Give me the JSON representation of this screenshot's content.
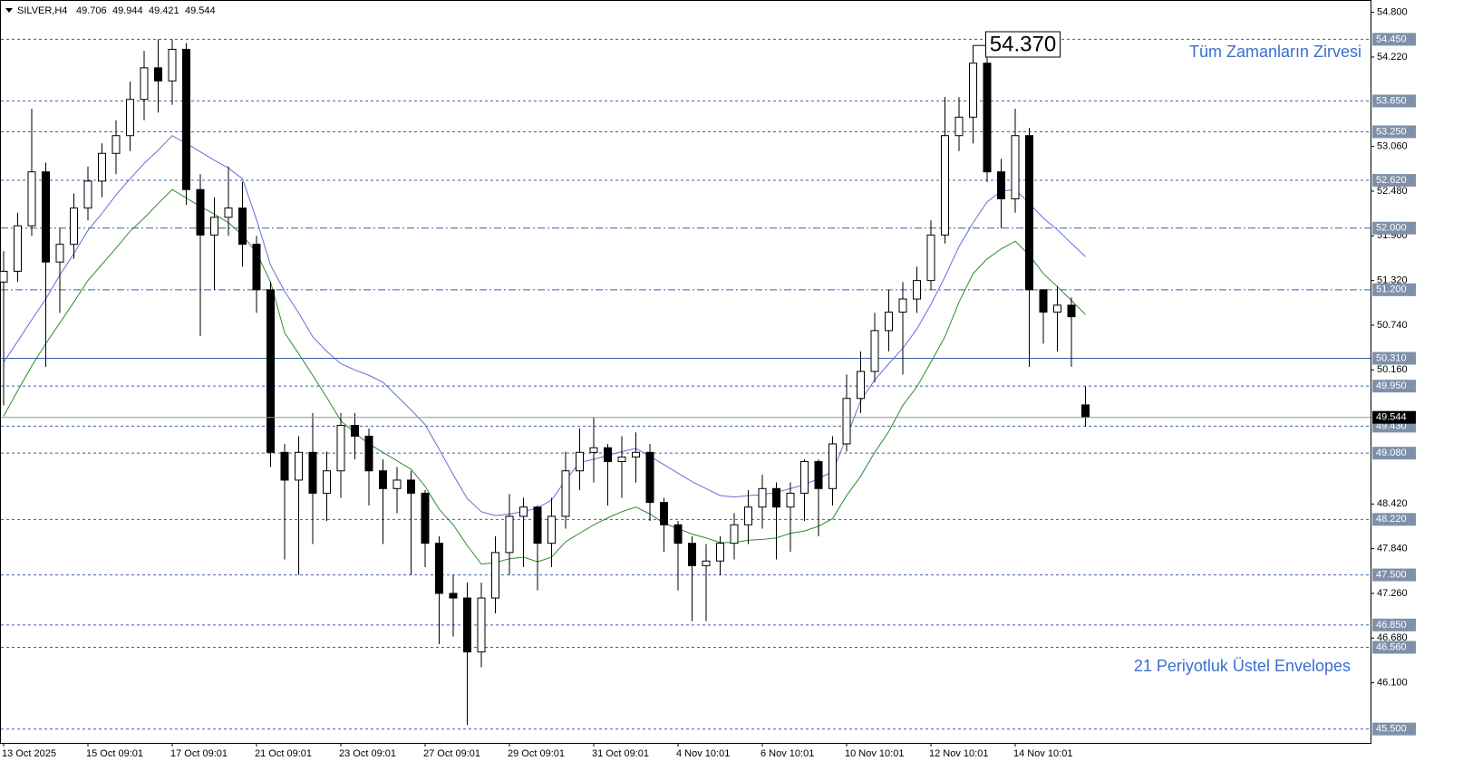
{
  "chart_data": {
    "type": "candlestick",
    "title": "SILVER,H4",
    "categories": [
      "13 Oct 2025",
      null,
      null,
      null,
      null,
      null,
      "15 Oct 09:01",
      null,
      null,
      null,
      null,
      null,
      "17 Oct 09:01",
      null,
      null,
      null,
      null,
      null,
      "21 Oct 09:01",
      null,
      null,
      null,
      null,
      null,
      "23 Oct 09:01",
      null,
      null,
      null,
      null,
      null,
      "27 Oct 09:01",
      null,
      null,
      null,
      null,
      null,
      "29 Oct 09:01",
      null,
      null,
      null,
      null,
      null,
      "31 Oct 09:01",
      null,
      null,
      null,
      null,
      null,
      "4 Nov 10:01",
      null,
      null,
      null,
      null,
      null,
      "6 Nov 10:01",
      null,
      null,
      null,
      null,
      null,
      "10 Nov 10:01",
      null,
      null,
      null,
      null,
      null,
      "12 Nov 10:01",
      null,
      null,
      null,
      null,
      null,
      "14 Nov 10:01",
      null,
      null,
      null,
      null,
      null
    ],
    "open": [
      51.3,
      51.44,
      52.03,
      52.73,
      51.56,
      51.79,
      52.26,
      52.61,
      52.97,
      53.2,
      53.67,
      54.08,
      53.91,
      54.32,
      52.5,
      51.91,
      52.14,
      52.26,
      51.79,
      51.2,
      49.09,
      48.73,
      49.09,
      48.56,
      48.85,
      49.44,
      49.3,
      48.85,
      48.62,
      48.73,
      48.56,
      47.91,
      47.26,
      47.2,
      46.5,
      47.2,
      47.79,
      48.26,
      48.38,
      47.91,
      48.26,
      48.85,
      49.09,
      49.15,
      48.97,
      49.03,
      49.09,
      48.44,
      48.15,
      47.91,
      47.62,
      47.68,
      47.91,
      48.15,
      48.38,
      48.62,
      48.38,
      48.56,
      48.97,
      48.62,
      49.2,
      49.79,
      50.14,
      50.67,
      50.91,
      51.08,
      51.32,
      51.91,
      53.2,
      53.44,
      54.14,
      52.73,
      52.38,
      53.2,
      51.2,
      50.91,
      51.0,
      49.706
    ],
    "high": [
      51.7,
      52.2,
      53.55,
      52.85,
      52.0,
      52.45,
      52.8,
      53.1,
      53.4,
      53.9,
      54.3,
      54.45,
      54.45,
      54.4,
      52.7,
      52.4,
      52.8,
      52.6,
      51.9,
      51.3,
      49.2,
      49.3,
      49.6,
      49.1,
      49.6,
      49.6,
      49.4,
      49.0,
      48.9,
      48.85,
      48.6,
      48.0,
      47.5,
      47.4,
      47.4,
      48.0,
      48.55,
      48.5,
      48.4,
      48.5,
      49.1,
      49.4,
      49.55,
      49.2,
      49.3,
      49.35,
      49.2,
      48.5,
      48.2,
      48.0,
      47.9,
      48.0,
      48.3,
      48.6,
      48.8,
      48.7,
      48.7,
      49.0,
      49.0,
      49.3,
      50.1,
      50.4,
      50.9,
      51.2,
      51.3,
      51.5,
      52.1,
      53.7,
      53.7,
      54.37,
      54.25,
      52.9,
      53.55,
      53.3,
      51.2,
      51.25,
      51.1,
      49.944
    ],
    "low": [
      49.7,
      51.3,
      51.9,
      50.2,
      50.9,
      51.6,
      52.1,
      52.4,
      52.7,
      53.0,
      53.4,
      53.5,
      53.6,
      52.3,
      50.6,
      51.2,
      51.9,
      51.5,
      50.9,
      48.9,
      47.7,
      47.5,
      47.9,
      48.2,
      48.5,
      49.0,
      48.4,
      47.9,
      48.3,
      47.5,
      47.6,
      46.6,
      46.7,
      45.55,
      46.3,
      47.0,
      47.5,
      47.6,
      47.3,
      47.6,
      48.1,
      48.6,
      48.7,
      48.4,
      48.5,
      48.7,
      48.2,
      47.8,
      47.3,
      46.9,
      46.9,
      47.5,
      47.7,
      47.9,
      48.1,
      47.7,
      47.8,
      48.2,
      48.0,
      48.4,
      49.1,
      49.6,
      50.0,
      50.4,
      50.1,
      50.9,
      51.2,
      51.8,
      53.0,
      53.1,
      52.6,
      52.0,
      52.2,
      50.2,
      50.5,
      50.4,
      50.2,
      49.421
    ],
    "close": [
      51.44,
      52.03,
      52.73,
      51.56,
      51.79,
      52.26,
      52.61,
      52.97,
      53.2,
      53.67,
      54.08,
      53.91,
      54.32,
      52.5,
      51.91,
      52.14,
      52.26,
      51.79,
      51.2,
      49.09,
      48.73,
      49.09,
      48.56,
      48.85,
      49.44,
      49.3,
      48.85,
      48.62,
      48.73,
      48.56,
      47.91,
      47.26,
      47.2,
      46.5,
      47.2,
      47.79,
      48.26,
      48.38,
      47.91,
      48.26,
      48.85,
      49.09,
      49.15,
      48.97,
      49.03,
      49.09,
      48.44,
      48.15,
      47.91,
      47.62,
      47.68,
      47.91,
      48.15,
      48.38,
      48.62,
      48.38,
      48.56,
      48.97,
      48.62,
      49.2,
      49.79,
      50.14,
      50.67,
      50.91,
      51.08,
      51.32,
      51.91,
      53.2,
      53.44,
      54.14,
      52.73,
      52.38,
      53.2,
      51.2,
      50.91,
      51.0,
      50.85,
      49.544
    ],
    "bull_color": "#ffffff",
    "bear_color": "#000000",
    "envelopes": [
      {
        "color": "#6a6ad8",
        "values": [
          50.26,
          50.53,
          50.81,
          51.08,
          51.39,
          51.67,
          51.97,
          52.19,
          52.43,
          52.64,
          52.84,
          53.01,
          53.2,
          53.1,
          52.99,
          52.88,
          52.78,
          52.64,
          52.11,
          51.52,
          51.18,
          50.9,
          50.59,
          50.4,
          50.24,
          50.16,
          50.09,
          50.0,
          49.82,
          49.64,
          49.45,
          49.13,
          48.8,
          48.49,
          48.32,
          48.27,
          48.29,
          48.32,
          48.37,
          48.47,
          48.73,
          48.96,
          49.0,
          49.05,
          49.1,
          49.14,
          49.04,
          48.93,
          48.82,
          48.71,
          48.62,
          48.53,
          48.51,
          48.53,
          48.54,
          48.57,
          48.62,
          48.67,
          48.75,
          48.84,
          49.29,
          49.76,
          50.03,
          50.24,
          50.44,
          50.69,
          51.01,
          51.37,
          51.76,
          52.07,
          52.34,
          52.48,
          52.5,
          52.32,
          52.13,
          51.98,
          51.8,
          51.63
        ]
      },
      {
        "color": "#2e8b2e",
        "values": [
          49.56,
          49.89,
          50.21,
          50.5,
          50.77,
          51.04,
          51.32,
          51.53,
          51.74,
          51.96,
          52.13,
          52.32,
          52.5,
          52.39,
          52.28,
          52.18,
          52.07,
          51.91,
          51.68,
          51.3,
          50.64,
          50.37,
          50.09,
          49.8,
          49.5,
          49.34,
          49.2,
          49.09,
          48.98,
          48.87,
          48.65,
          48.35,
          48.15,
          47.88,
          47.64,
          47.66,
          47.71,
          47.73,
          47.67,
          47.73,
          47.93,
          48.04,
          48.15,
          48.24,
          48.32,
          48.38,
          48.29,
          48.17,
          48.1,
          48.03,
          47.98,
          47.92,
          47.92,
          47.95,
          47.96,
          47.98,
          48.04,
          48.07,
          48.13,
          48.23,
          48.53,
          48.78,
          49.09,
          49.36,
          49.7,
          49.94,
          50.26,
          50.59,
          51.04,
          51.41,
          51.6,
          51.73,
          51.83,
          51.65,
          51.41,
          51.24,
          51.06,
          50.88
        ]
      }
    ],
    "levels": [
      {
        "value": 54.45,
        "label": "54.450",
        "style": "dashed"
      },
      {
        "value": 53.65,
        "label": "53.650",
        "style": "dashed"
      },
      {
        "value": 53.25,
        "label": "53.250",
        "style": "dashed"
      },
      {
        "value": 52.62,
        "label": "52.620",
        "style": "dashed"
      },
      {
        "value": 52.0,
        "label": "52.000",
        "style": "dashdot"
      },
      {
        "value": 51.2,
        "label": "51.200",
        "style": "dashdot"
      },
      {
        "value": 50.31,
        "label": "50.310",
        "style": "solid"
      },
      {
        "value": 49.95,
        "label": "49.950",
        "style": "dashed"
      },
      {
        "value": 49.43,
        "label": "49.430",
        "style": "dashed"
      },
      {
        "value": 49.08,
        "label": "49.080",
        "style": "dashed"
      },
      {
        "value": 48.22,
        "label": "48.220",
        "style": "dashed"
      },
      {
        "value": 47.5,
        "label": "47.500",
        "style": "dashed"
      },
      {
        "value": 46.85,
        "label": "46.850",
        "style": "dashed"
      },
      {
        "value": 46.56,
        "label": "46.560",
        "style": "dashed"
      },
      {
        "value": 45.5,
        "label": "45.500",
        "style": "dashed"
      }
    ],
    "level_color": "#3a5fb0",
    "peak_label": {
      "value": 54.37,
      "label": "54.370"
    },
    "ylim": [
      45.32,
      54.96
    ],
    "yticks": [
      {
        "value": 54.8,
        "label": "54.800"
      },
      {
        "value": 54.22,
        "label": "54.220"
      },
      {
        "value": 53.06,
        "label": "53.060"
      },
      {
        "value": 52.48,
        "label": "52.480"
      },
      {
        "value": 51.9,
        "label": "51.900"
      },
      {
        "value": 51.32,
        "label": "51.320"
      },
      {
        "value": 50.74,
        "label": "50.740"
      },
      {
        "value": 50.16,
        "label": "50.160"
      },
      {
        "value": 48.42,
        "label": "48.420"
      },
      {
        "value": 47.84,
        "label": "47.840"
      },
      {
        "value": 47.26,
        "label": "47.260"
      },
      {
        "value": 46.68,
        "label": "46.680"
      },
      {
        "value": 46.1,
        "label": "46.100"
      }
    ],
    "annotations": {
      "top": "Tüm Zamanların Zirvesi",
      "bottom": "21 Periyotluk Üstel Envelopes"
    }
  }
}
